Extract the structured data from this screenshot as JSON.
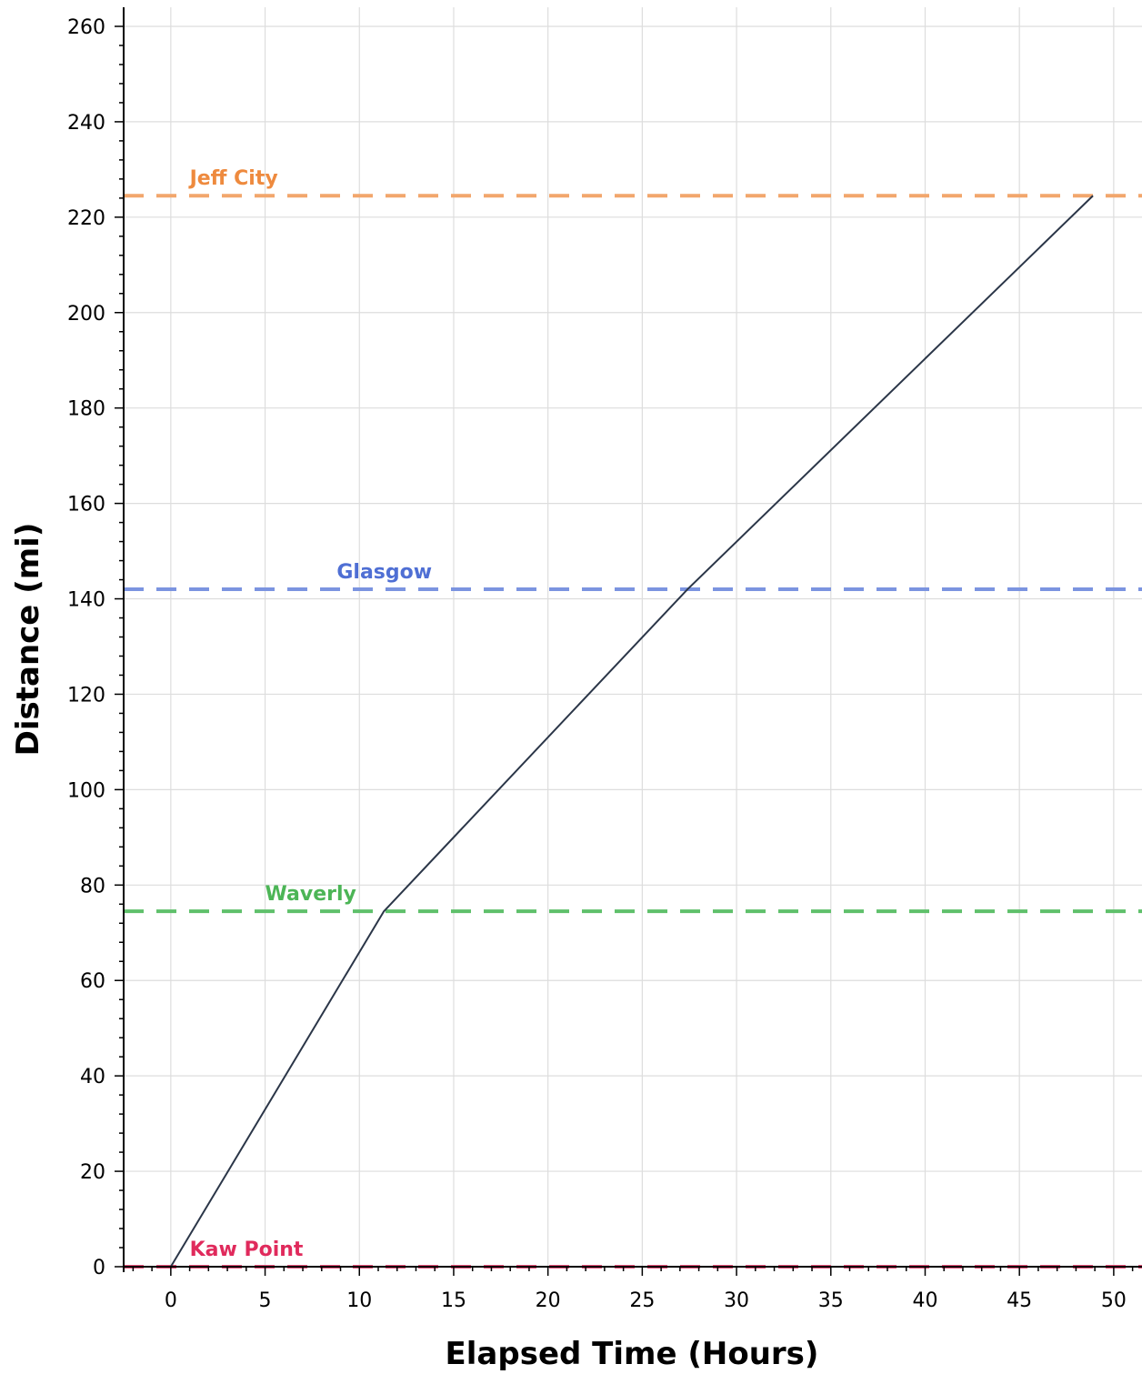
{
  "chart_data": {
    "type": "line",
    "title": "",
    "xlabel": "Elapsed Time (Hours)",
    "ylabel": "Distance (mi)",
    "xlim": [
      -2.5,
      51.5
    ],
    "ylim": [
      0,
      264
    ],
    "x_ticks": [
      0,
      5,
      10,
      15,
      20,
      25,
      30,
      35,
      40,
      45,
      50
    ],
    "y_ticks": [
      0,
      20,
      40,
      60,
      80,
      100,
      120,
      140,
      160,
      180,
      200,
      220,
      240,
      260
    ],
    "x_tick_labels": [
      "0",
      "5",
      "10",
      "15",
      "20",
      "25",
      "30",
      "35",
      "40",
      "45",
      "50"
    ],
    "y_tick_labels": [
      "0",
      "20",
      "40",
      "60",
      "80",
      "100",
      "120",
      "140",
      "160",
      "180",
      "200",
      "220",
      "240",
      "260"
    ],
    "grid": true,
    "series": [
      {
        "color": "#2b3648",
        "x": [
          0,
          11.3,
          27.4,
          48.9
        ],
        "y": [
          0,
          74.5,
          142,
          224.5
        ]
      }
    ],
    "reference_lines": [
      {
        "name": "Kaw Point",
        "y": 0,
        "color": "#e8527a",
        "label_x": 1
      },
      {
        "name": "Waverly",
        "y": 74.5,
        "color": "#5fc06b",
        "label_x": 5
      },
      {
        "name": "Glasgow",
        "y": 142,
        "color": "#7b94e0",
        "label_x": 8.8
      },
      {
        "name": "Jeff City",
        "y": 224.5,
        "color": "#f2a66c",
        "label_x": 1
      }
    ],
    "reference_label_colors": {
      "Kaw Point": "#e02a5c",
      "Waverly": "#4cb556",
      "Glasgow": "#4f6fd4",
      "Jeff City": "#ee8a3e"
    }
  }
}
